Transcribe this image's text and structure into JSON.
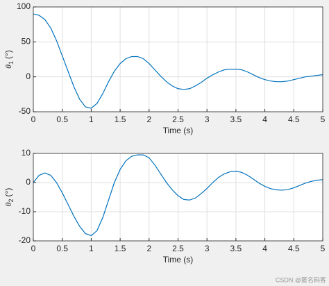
{
  "chart_data": [
    {
      "type": "line",
      "xlabel": "Time (s)",
      "ylabel": {
        "symbol": "θ",
        "subscript": "1",
        "unit": "(°)"
      },
      "xlim": [
        0,
        5
      ],
      "xticks": [
        0,
        0.5,
        1,
        1.5,
        2,
        2.5,
        3,
        3.5,
        4,
        4.5,
        5
      ],
      "ylim": [
        -50,
        100
      ],
      "yticks": [
        -50,
        0,
        50,
        100
      ],
      "grid": true,
      "color": "#0072bd",
      "x": [
        0,
        0.1,
        0.2,
        0.3,
        0.4,
        0.5,
        0.6,
        0.7,
        0.8,
        0.9,
        1,
        1.1,
        1.2,
        1.3,
        1.4,
        1.5,
        1.6,
        1.7,
        1.8,
        1.9,
        2,
        2.1,
        2.2,
        2.3,
        2.4,
        2.5,
        2.6,
        2.7,
        2.8,
        2.9,
        3,
        3.1,
        3.2,
        3.3,
        3.4,
        3.5,
        3.6,
        3.7,
        3.8,
        3.9,
        4,
        4.1,
        4.2,
        4.3,
        4.4,
        4.5,
        4.6,
        4.7,
        4.8,
        4.9,
        5
      ],
      "values": [
        90,
        88,
        82,
        70,
        52,
        30,
        8,
        -14,
        -32,
        -43,
        -45,
        -38,
        -24,
        -7,
        8,
        19,
        26,
        29,
        29,
        26,
        19,
        10,
        1,
        -7,
        -13,
        -17,
        -18,
        -17,
        -13,
        -8,
        -2,
        3,
        7,
        10,
        11,
        11,
        10,
        7,
        3,
        -1,
        -4,
        -6,
        -7,
        -7,
        -6,
        -4,
        -2,
        0,
        1,
        2,
        3
      ]
    },
    {
      "type": "line",
      "xlabel": "Time (s)",
      "ylabel": {
        "symbol": "θ",
        "subscript": "2",
        "unit": "(°)"
      },
      "xlim": [
        0,
        5
      ],
      "xticks": [
        0,
        0.5,
        1,
        1.5,
        2,
        2.5,
        3,
        3.5,
        4,
        4.5,
        5
      ],
      "ylim": [
        -20,
        10
      ],
      "yticks": [
        -20,
        -10,
        0,
        10
      ],
      "grid": true,
      "color": "#0072bd",
      "x": [
        0,
        0.1,
        0.2,
        0.3,
        0.4,
        0.5,
        0.6,
        0.7,
        0.8,
        0.9,
        1,
        1.1,
        1.2,
        1.3,
        1.4,
        1.5,
        1.6,
        1.7,
        1.8,
        1.9,
        2,
        2.1,
        2.2,
        2.3,
        2.4,
        2.5,
        2.6,
        2.7,
        2.8,
        2.9,
        3,
        3.1,
        3.2,
        3.3,
        3.4,
        3.5,
        3.6,
        3.7,
        3.8,
        3.9,
        4,
        4.1,
        4.2,
        4.3,
        4.4,
        4.5,
        4.6,
        4.7,
        4.8,
        4.9,
        5
      ],
      "values": [
        0,
        2.5,
        3.3,
        2.5,
        0,
        -3.5,
        -7.5,
        -11.5,
        -15,
        -17.5,
        -18.2,
        -16.5,
        -12,
        -6,
        0,
        4.5,
        7.5,
        9,
        9.5,
        9.5,
        8.5,
        6,
        3,
        0,
        -2.5,
        -4.5,
        -5.8,
        -6,
        -5.3,
        -3.8,
        -2,
        0,
        1.8,
        3,
        3.7,
        3.9,
        3.5,
        2.5,
        1.2,
        -0.2,
        -1.3,
        -2.1,
        -2.5,
        -2.6,
        -2.4,
        -1.8,
        -1,
        -0.2,
        0.4,
        0.8,
        1
      ]
    }
  ],
  "watermark": "CSDN @匿名码客"
}
